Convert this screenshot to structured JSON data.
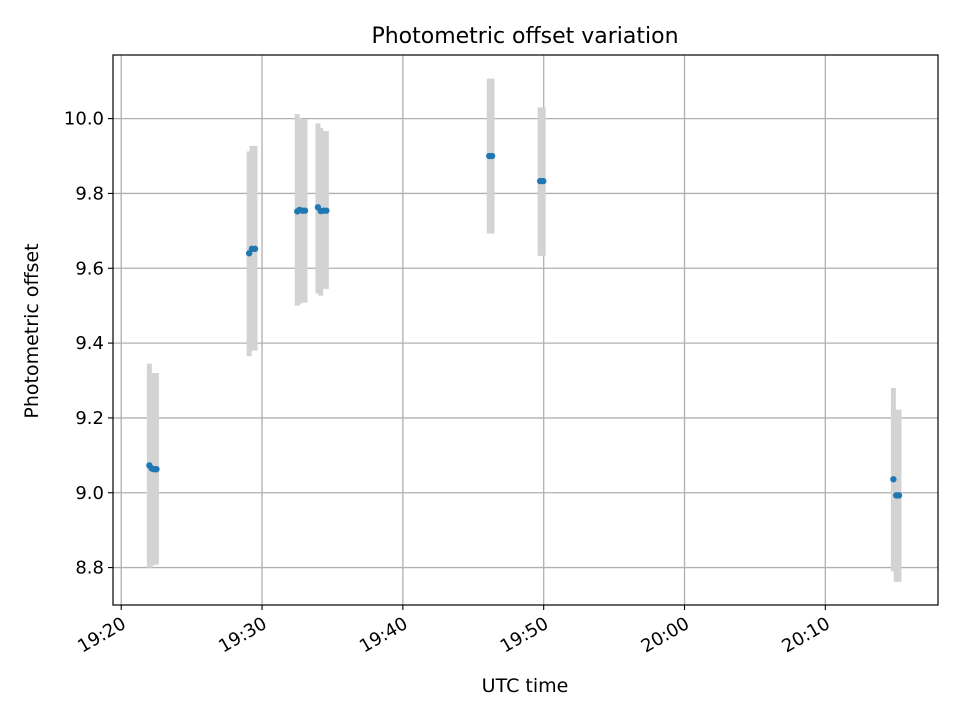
{
  "chart_data": {
    "type": "scatter",
    "title": "Photometric offset variation",
    "xlabel": "UTC time",
    "ylabel": "Photometric offset",
    "x_ticks": [
      "19:20",
      "19:30",
      "19:40",
      "19:50",
      "20:00",
      "20:10"
    ],
    "xlim": [
      "19:19:25",
      "20:18:00"
    ],
    "y_ticks": [
      "8.8",
      "9.0",
      "9.2",
      "9.4",
      "9.6",
      "9.8",
      "10.0"
    ],
    "ylim": [
      8.7,
      10.17
    ],
    "grid": true,
    "colors": {
      "marker": "#1f77b4",
      "errorbar": "#d3d3d3",
      "grid": "#b0b0b0"
    },
    "series": [
      {
        "points": [
          {
            "t": "19:22:00",
            "y": 9.073,
            "lo": 8.8,
            "hi": 9.345
          },
          {
            "t": "19:22:10",
            "y": 9.065,
            "lo": 8.805,
            "hi": 9.32
          },
          {
            "t": "19:22:20",
            "y": 9.063,
            "lo": 8.808,
            "hi": 9.32
          },
          {
            "t": "19:22:30",
            "y": 9.063,
            "lo": 8.808,
            "hi": 9.32
          },
          {
            "t": "19:29:05",
            "y": 9.64,
            "lo": 9.365,
            "hi": 9.912
          },
          {
            "t": "19:29:17",
            "y": 9.652,
            "lo": 9.38,
            "hi": 9.927
          },
          {
            "t": "19:29:30",
            "y": 9.652,
            "lo": 9.38,
            "hi": 9.927
          },
          {
            "t": "19:32:30",
            "y": 9.752,
            "lo": 9.5,
            "hi": 10.012
          },
          {
            "t": "19:32:40",
            "y": 9.756,
            "lo": 9.505,
            "hi": 10.002
          },
          {
            "t": "19:32:52",
            "y": 9.754,
            "lo": 9.508,
            "hi": 9.998
          },
          {
            "t": "19:33:03",
            "y": 9.754,
            "lo": 9.508,
            "hi": 9.998
          },
          {
            "t": "19:33:58",
            "y": 9.763,
            "lo": 9.533,
            "hi": 9.987
          },
          {
            "t": "19:34:10",
            "y": 9.753,
            "lo": 9.527,
            "hi": 9.975
          },
          {
            "t": "19:34:22",
            "y": 9.754,
            "lo": 9.545,
            "hi": 9.967
          },
          {
            "t": "19:34:34",
            "y": 9.754,
            "lo": 9.545,
            "hi": 9.967
          },
          {
            "t": "19:46:08",
            "y": 9.9,
            "lo": 9.693,
            "hi": 10.107
          },
          {
            "t": "19:46:20",
            "y": 9.9,
            "lo": 9.693,
            "hi": 10.107
          },
          {
            "t": "19:49:45",
            "y": 9.833,
            "lo": 9.633,
            "hi": 10.03
          },
          {
            "t": "19:49:58",
            "y": 9.833,
            "lo": 9.633,
            "hi": 10.03
          },
          {
            "t": "20:14:50",
            "y": 9.036,
            "lo": 8.79,
            "hi": 9.28
          },
          {
            "t": "20:15:02",
            "y": 8.993,
            "lo": 8.762,
            "hi": 9.222
          },
          {
            "t": "20:15:14",
            "y": 8.993,
            "lo": 8.762,
            "hi": 9.222
          }
        ]
      }
    ]
  }
}
